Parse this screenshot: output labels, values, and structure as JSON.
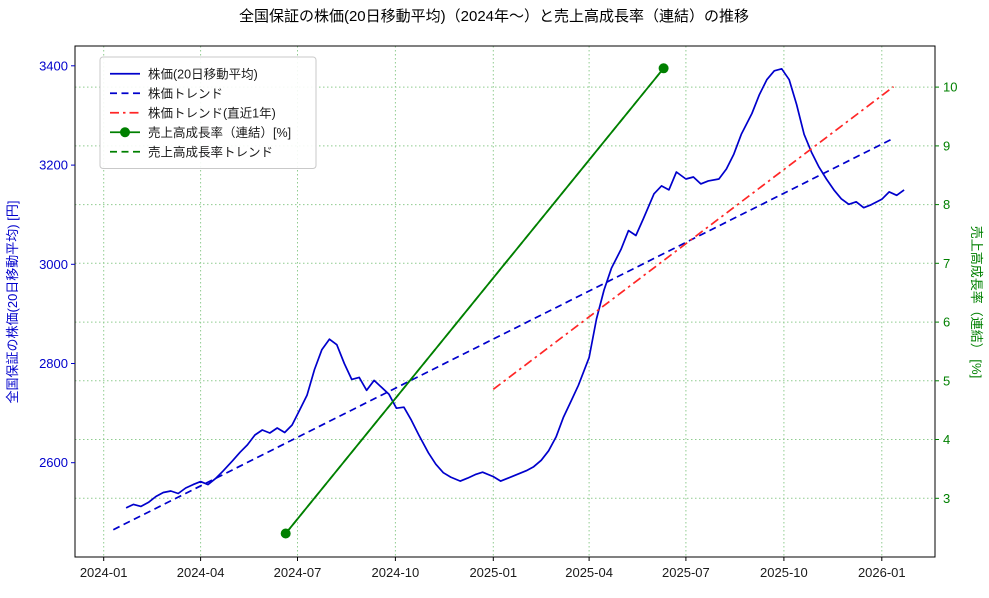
{
  "chart_data": {
    "type": "line",
    "title": "全国保証の株価(20日移動平均)（2024年〜）と売上高成長率（連結）の推移",
    "ylabel_left": "全国保証の株価(20日移動平均) [円]",
    "ylabel_right": "売上高成長率（連結） [%]",
    "x_domain": [
      "2023-12-05",
      "2026-02-20"
    ],
    "y_left_domain": [
      2410,
      3440
    ],
    "y_right_domain": [
      2.0,
      10.7
    ],
    "x_ticks": [
      {
        "label": "2024-01",
        "date": "2024-01-01"
      },
      {
        "label": "2024-04",
        "date": "2024-04-01"
      },
      {
        "label": "2024-07",
        "date": "2024-07-01"
      },
      {
        "label": "2024-10",
        "date": "2024-10-01"
      },
      {
        "label": "2025-01",
        "date": "2025-01-01"
      },
      {
        "label": "2025-04",
        "date": "2025-04-01"
      },
      {
        "label": "2025-07",
        "date": "2025-07-01"
      },
      {
        "label": "2025-10",
        "date": "2025-10-01"
      },
      {
        "label": "2026-01",
        "date": "2026-01-01"
      }
    ],
    "y_left_ticks": [
      2600,
      2800,
      3000,
      3200,
      3400
    ],
    "y_right_ticks": [
      3,
      4,
      5,
      6,
      7,
      8,
      9,
      10
    ],
    "grid": true,
    "legend_position": "upper-left",
    "colors": {
      "price": "#0000cc",
      "trend_recent": "#ff2626",
      "growth": "#008000",
      "grid": "#8fcc8f",
      "frame": "#000000",
      "tick_label": "#1a1a1a"
    },
    "series": [
      {
        "id": "price-ma-line",
        "name": "株価(20日移動平均)",
        "axis": "left",
        "color": "#0000cc",
        "style": "solid",
        "width": 1.7,
        "marker": "none",
        "points": [
          [
            "2024-01-22",
            2509
          ],
          [
            "2024-01-29",
            2516
          ],
          [
            "2024-02-05",
            2512
          ],
          [
            "2024-02-12",
            2520
          ],
          [
            "2024-02-19",
            2532
          ],
          [
            "2024-02-26",
            2540
          ],
          [
            "2024-03-04",
            2543
          ],
          [
            "2024-03-11",
            2538
          ],
          [
            "2024-03-18",
            2549
          ],
          [
            "2024-03-25",
            2556
          ],
          [
            "2024-04-01",
            2562
          ],
          [
            "2024-04-08",
            2556
          ],
          [
            "2024-04-15",
            2568
          ],
          [
            "2024-04-22",
            2583
          ],
          [
            "2024-05-01",
            2604
          ],
          [
            "2024-05-08",
            2621
          ],
          [
            "2024-05-15",
            2636
          ],
          [
            "2024-05-22",
            2656
          ],
          [
            "2024-05-29",
            2666
          ],
          [
            "2024-06-05",
            2660
          ],
          [
            "2024-06-12",
            2670
          ],
          [
            "2024-06-19",
            2661
          ],
          [
            "2024-06-26",
            2676
          ],
          [
            "2024-07-03",
            2706
          ],
          [
            "2024-07-10",
            2736
          ],
          [
            "2024-07-17",
            2788
          ],
          [
            "2024-07-24",
            2828
          ],
          [
            "2024-07-31",
            2849
          ],
          [
            "2024-08-07",
            2838
          ],
          [
            "2024-08-14",
            2800
          ],
          [
            "2024-08-21",
            2768
          ],
          [
            "2024-08-28",
            2772
          ],
          [
            "2024-09-04",
            2746
          ],
          [
            "2024-09-11",
            2766
          ],
          [
            "2024-09-18",
            2752
          ],
          [
            "2024-09-25",
            2738
          ],
          [
            "2024-10-02",
            2710
          ],
          [
            "2024-10-09",
            2712
          ],
          [
            "2024-10-16",
            2686
          ],
          [
            "2024-10-23",
            2656
          ],
          [
            "2024-11-01",
            2620
          ],
          [
            "2024-11-08",
            2597
          ],
          [
            "2024-11-15",
            2580
          ],
          [
            "2024-11-22",
            2571
          ],
          [
            "2024-12-01",
            2563
          ],
          [
            "2024-12-08",
            2569
          ],
          [
            "2024-12-15",
            2576
          ],
          [
            "2024-12-22",
            2581
          ],
          [
            "2025-01-01",
            2572
          ],
          [
            "2025-01-08",
            2563
          ],
          [
            "2025-01-15",
            2569
          ],
          [
            "2025-01-22",
            2575
          ],
          [
            "2025-02-01",
            2584
          ],
          [
            "2025-02-08",
            2592
          ],
          [
            "2025-02-15",
            2605
          ],
          [
            "2025-02-22",
            2624
          ],
          [
            "2025-03-01",
            2652
          ],
          [
            "2025-03-08",
            2692
          ],
          [
            "2025-03-15",
            2724
          ],
          [
            "2025-03-22",
            2756
          ],
          [
            "2025-04-01",
            2812
          ],
          [
            "2025-04-08",
            2890
          ],
          [
            "2025-04-15",
            2948
          ],
          [
            "2025-04-22",
            2992
          ],
          [
            "2025-05-01",
            3030
          ],
          [
            "2025-05-08",
            3068
          ],
          [
            "2025-05-15",
            3058
          ],
          [
            "2025-05-22",
            3092
          ],
          [
            "2025-06-01",
            3142
          ],
          [
            "2025-06-08",
            3158
          ],
          [
            "2025-06-15",
            3150
          ],
          [
            "2025-06-22",
            3186
          ],
          [
            "2025-07-01",
            3172
          ],
          [
            "2025-07-08",
            3176
          ],
          [
            "2025-07-15",
            3162
          ],
          [
            "2025-07-22",
            3168
          ],
          [
            "2025-08-01",
            3172
          ],
          [
            "2025-08-08",
            3192
          ],
          [
            "2025-08-15",
            3222
          ],
          [
            "2025-08-22",
            3262
          ],
          [
            "2025-09-01",
            3304
          ],
          [
            "2025-09-08",
            3342
          ],
          [
            "2025-09-15",
            3372
          ],
          [
            "2025-09-22",
            3390
          ],
          [
            "2025-09-29",
            3394
          ],
          [
            "2025-10-06",
            3372
          ],
          [
            "2025-10-13",
            3322
          ],
          [
            "2025-10-20",
            3262
          ],
          [
            "2025-10-27",
            3226
          ],
          [
            "2025-11-03",
            3196
          ],
          [
            "2025-11-10",
            3172
          ],
          [
            "2025-11-17",
            3150
          ],
          [
            "2025-11-24",
            3132
          ],
          [
            "2025-12-01",
            3121
          ],
          [
            "2025-12-08",
            3126
          ],
          [
            "2025-12-15",
            3114
          ],
          [
            "2025-12-22",
            3120
          ],
          [
            "2026-01-01",
            3131
          ],
          [
            "2026-01-08",
            3146
          ],
          [
            "2026-01-15",
            3139
          ],
          [
            "2026-01-22",
            3150
          ]
        ]
      },
      {
        "id": "price-trend-line",
        "name": "株価トレンド",
        "axis": "left",
        "color": "#0000cc",
        "style": "dashed",
        "width": 1.7,
        "marker": "none",
        "points": [
          [
            "2024-01-10",
            2465
          ],
          [
            "2026-01-12",
            3254
          ]
        ]
      },
      {
        "id": "price-trend-recent-line",
        "name": "株価トレンド(直近1年)",
        "axis": "left",
        "color": "#ff2626",
        "style": "dashdot",
        "width": 1.7,
        "marker": "none",
        "points": [
          [
            "2025-01-01",
            2748
          ],
          [
            "2026-01-12",
            3358
          ]
        ]
      },
      {
        "id": "growth-line",
        "name": "売上高成長率（連結）[%]",
        "axis": "right",
        "color": "#008000",
        "style": "solid",
        "width": 1.8,
        "marker": "circle",
        "points": [
          [
            "2024-06-20",
            2.4
          ],
          [
            "2025-06-10",
            10.32
          ]
        ]
      },
      {
        "id": "growth-trend-line",
        "name": "売上高成長率トレンド",
        "axis": "right",
        "color": "#008000",
        "style": "dashed",
        "width": 1.7,
        "marker": "none",
        "points": [
          [
            "2024-06-20",
            2.4
          ],
          [
            "2025-06-10",
            10.32
          ]
        ]
      }
    ]
  }
}
